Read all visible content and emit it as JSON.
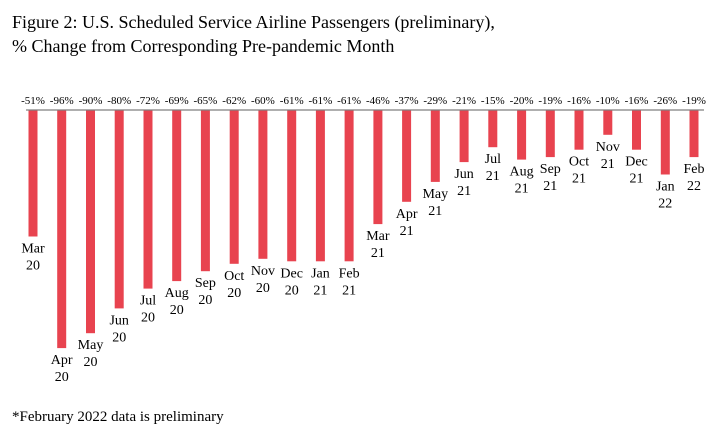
{
  "title": {
    "line1": "Figure 2: U.S. Scheduled Service Airline Passengers (preliminary),",
    "line2": "% Change from Corresponding Pre-pandemic Month"
  },
  "footnote": "*February 2022 data is preliminary",
  "colors": {
    "bar": "#e8434f",
    "baseline": "#7f7f7f"
  },
  "chart_data": {
    "type": "bar",
    "title": "Figure 2: U.S. Scheduled Service Airline Passengers (preliminary), % Change from Corresponding Pre-pandemic Month",
    "xlabel": "",
    "ylabel": "",
    "ylim": [
      -100,
      0
    ],
    "grid": false,
    "legend": "none",
    "categories": [
      [
        "Mar",
        "20"
      ],
      [
        "Apr",
        "20"
      ],
      [
        "May",
        "20"
      ],
      [
        "Jun",
        "20"
      ],
      [
        "Jul",
        "20"
      ],
      [
        "Aug",
        "20"
      ],
      [
        "Sep",
        "20"
      ],
      [
        "Oct",
        "20"
      ],
      [
        "Nov",
        "20"
      ],
      [
        "Dec",
        "20"
      ],
      [
        "Jan",
        "21"
      ],
      [
        "Feb",
        "21"
      ],
      [
        "Mar",
        "21"
      ],
      [
        "Apr",
        "21"
      ],
      [
        "May",
        "21"
      ],
      [
        "Jun",
        "21"
      ],
      [
        "Jul",
        "21"
      ],
      [
        "Aug",
        "21"
      ],
      [
        "Sep",
        "21"
      ],
      [
        "Oct",
        "21"
      ],
      [
        "Nov",
        "21"
      ],
      [
        "Dec",
        "21"
      ],
      [
        "Jan",
        "22"
      ],
      [
        "Feb",
        "22"
      ]
    ],
    "values": [
      -51,
      -96,
      -90,
      -80,
      -72,
      -69,
      -65,
      -62,
      -60,
      -61,
      -61,
      -61,
      -46,
      -37,
      -29,
      -21,
      -15,
      -20,
      -19,
      -16,
      -10,
      -16,
      -26,
      -19
    ],
    "value_labels": [
      "-51%",
      "-96%",
      "-90%",
      "-80%",
      "-72%",
      "-69%",
      "-65%",
      "-62%",
      "-60%",
      "-61%",
      "-61%",
      "-61%",
      "-46%",
      "-37%",
      "-29%",
      "-21%",
      "-15%",
      "-20%",
      "-19%",
      "-16%",
      "-10%",
      "-16%",
      "-26%",
      "-19%"
    ]
  }
}
